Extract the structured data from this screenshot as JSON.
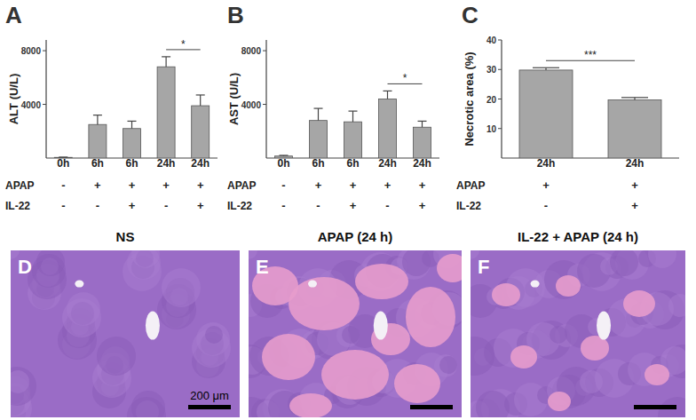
{
  "chart_data": [
    {
      "type": "bar",
      "title": "A",
      "y_label": "ALT (U/L)",
      "categories": [
        "0h",
        "6h",
        "6h",
        "24h",
        "24h"
      ],
      "values": [
        50,
        2500,
        2200,
        6800,
        3900
      ],
      "errors": [
        20,
        700,
        550,
        750,
        800
      ],
      "color": "#a6a6a6",
      "ylim": [
        0,
        8800
      ],
      "yticks": [
        4000,
        8000
      ],
      "conditions": [
        {
          "label": "APAP",
          "values": [
            "-",
            "+",
            "+",
            "+",
            "+"
          ]
        },
        {
          "label": "IL-22",
          "values": [
            "-",
            "-",
            "+",
            "-",
            "+"
          ]
        }
      ],
      "annotations": [
        {
          "from": 3,
          "to": 4,
          "text": "*"
        }
      ]
    },
    {
      "type": "bar",
      "title": "B",
      "y_label": "AST (U/L)",
      "categories": [
        "0h",
        "6h",
        "6h",
        "24h",
        "24h"
      ],
      "values": [
        150,
        2800,
        2700,
        4400,
        2300
      ],
      "errors": [
        50,
        900,
        800,
        600,
        450
      ],
      "color": "#a6a6a6",
      "ylim": [
        0,
        8800
      ],
      "yticks": [
        4000,
        8000
      ],
      "conditions": [
        {
          "label": "APAP",
          "values": [
            "-",
            "+",
            "+",
            "+",
            "+"
          ]
        },
        {
          "label": "IL-22",
          "values": [
            "-",
            "-",
            "+",
            "-",
            "+"
          ]
        }
      ],
      "annotations": [
        {
          "from": 3,
          "to": 4,
          "text": "*"
        }
      ]
    },
    {
      "type": "bar",
      "title": "C",
      "y_label": "Necrotic area (%)",
      "categories": [
        "24h",
        "24h"
      ],
      "values": [
        29.8,
        19.7
      ],
      "errors": [
        0.8,
        0.8
      ],
      "color": "#a6a6a6",
      "ylim": [
        0,
        40
      ],
      "yticks": [
        10,
        20,
        30,
        40
      ],
      "conditions": [
        {
          "label": "APAP",
          "values": [
            "+",
            "+"
          ]
        },
        {
          "label": "IL-22",
          "values": [
            "-",
            "+"
          ]
        }
      ],
      "annotations": [
        {
          "from": 0,
          "to": 1,
          "text": "***"
        }
      ]
    }
  ],
  "images": [
    {
      "letter": "D",
      "title": "NS",
      "scale_bar": "200 μm"
    },
    {
      "letter": "E",
      "title": "APAP (24 h)"
    },
    {
      "letter": "F",
      "title": "IL-22 + APAP (24 h)"
    }
  ]
}
